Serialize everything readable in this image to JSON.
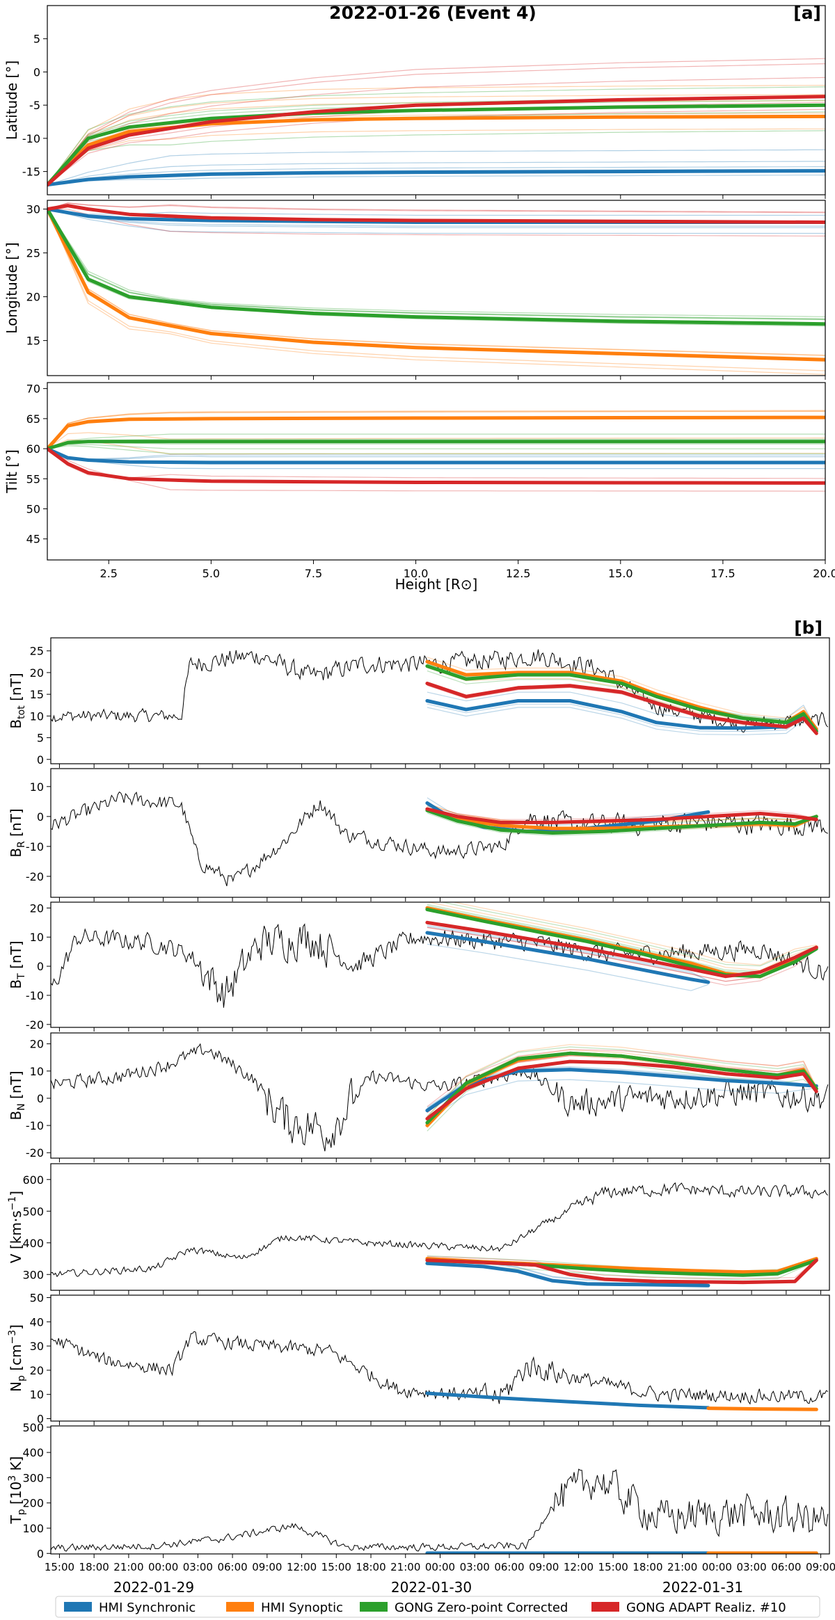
{
  "figure": {
    "title": "2022-01-26 (Event 4)",
    "panel_a_label": "[a]",
    "panel_b_label": "[b]"
  },
  "legend": [
    {
      "name": "HMI Synchronic",
      "color": "#1f77b4"
    },
    {
      "name": "HMI Synoptic",
      "color": "#ff7f0e"
    },
    {
      "name": "GONG Zero-point Corrected",
      "color": "#2ca02c"
    },
    {
      "name": "GONG ADAPT Realiz. #10",
      "color": "#d62728"
    }
  ],
  "colors": {
    "observed": "#000000",
    "grid": "#000000"
  },
  "chart_data": [
    {
      "type": "line",
      "panel": "a",
      "ylabel": "Latitude [°]",
      "xlabel": "",
      "xlim": [
        1,
        20
      ],
      "ylim": [
        -18.5,
        10
      ],
      "yticks": [
        5,
        0,
        -5,
        -10,
        -15
      ],
      "series": [
        {
          "name": "HMI Synchronic",
          "x": [
            1,
            2,
            3,
            5,
            7.5,
            10,
            15,
            20
          ],
          "values": [
            -17,
            -16.2,
            -15.8,
            -15.4,
            -15.2,
            -15.1,
            -15,
            -14.9
          ]
        },
        {
          "name": "HMI Synoptic",
          "x": [
            1,
            2,
            3,
            5,
            7.5,
            10,
            15,
            20
          ],
          "values": [
            -17,
            -11,
            -9,
            -7.8,
            -7.2,
            -7,
            -6.8,
            -6.7
          ]
        },
        {
          "name": "GONG Zero-point Corrected",
          "x": [
            1,
            2,
            3,
            5,
            7.5,
            10,
            15,
            20
          ],
          "values": [
            -17,
            -10,
            -8.3,
            -7,
            -6.2,
            -5.8,
            -5.3,
            -5
          ]
        },
        {
          "name": "GONG ADAPT Realiz. #10",
          "x": [
            1,
            2,
            3,
            5,
            7.5,
            10,
            15,
            20
          ],
          "values": [
            -17,
            -11.5,
            -9.5,
            -7.5,
            -6,
            -5,
            -4.2,
            -3.7
          ]
        }
      ]
    },
    {
      "type": "line",
      "panel": "a",
      "ylabel": "Longitude [°]",
      "xlabel": "",
      "xlim": [
        1,
        20
      ],
      "ylim": [
        11,
        31
      ],
      "yticks": [
        30,
        25,
        20,
        15
      ],
      "series": [
        {
          "name": "HMI Synchronic",
          "x": [
            1,
            2,
            3,
            5,
            7.5,
            10,
            15,
            20
          ],
          "values": [
            30,
            29.2,
            28.9,
            28.7,
            28.6,
            28.5,
            28.5,
            28.5
          ]
        },
        {
          "name": "HMI Synoptic",
          "x": [
            1,
            2,
            3,
            5,
            7.5,
            10,
            15,
            20
          ],
          "values": [
            30,
            20.5,
            17.6,
            15.8,
            14.8,
            14.2,
            13.5,
            12.8
          ]
        },
        {
          "name": "GONG Zero-point Corrected",
          "x": [
            1,
            2,
            3,
            5,
            7.5,
            10,
            15,
            20
          ],
          "values": [
            30,
            22,
            20,
            18.8,
            18.1,
            17.7,
            17.2,
            16.9
          ]
        },
        {
          "name": "GONG ADAPT Realiz. #10",
          "x": [
            1,
            1.5,
            2,
            3,
            5,
            7.5,
            10,
            15,
            20
          ],
          "values": [
            30,
            30.4,
            30,
            29.4,
            29,
            28.8,
            28.7,
            28.6,
            28.5
          ]
        }
      ]
    },
    {
      "type": "line",
      "panel": "a",
      "ylabel": "Tilt [°]",
      "xlabel": "Height [R⊙]",
      "xlim": [
        1,
        20
      ],
      "ylim": [
        41.5,
        71
      ],
      "yticks": [
        70,
        65,
        60,
        55,
        50,
        45
      ],
      "xticks": [
        "2.5",
        "5.0",
        "7.5",
        "10.0",
        "12.5",
        "15.0",
        "17.5",
        "20.0"
      ],
      "series": [
        {
          "name": "HMI Synchronic",
          "x": [
            1,
            1.5,
            2,
            3,
            5,
            10,
            20
          ],
          "values": [
            60,
            58.5,
            58.1,
            57.8,
            57.7,
            57.7,
            57.7
          ]
        },
        {
          "name": "HMI Synoptic",
          "x": [
            1,
            1.5,
            2,
            3,
            5,
            10,
            20
          ],
          "values": [
            60,
            63.8,
            64.5,
            64.9,
            65,
            65.1,
            65.2
          ]
        },
        {
          "name": "GONG Zero-point Corrected",
          "x": [
            1,
            1.5,
            2,
            3,
            5,
            10,
            20
          ],
          "values": [
            60,
            61,
            61.2,
            61.2,
            61.2,
            61.2,
            61.2
          ]
        },
        {
          "name": "GONG ADAPT Realiz. #10",
          "x": [
            1,
            1.5,
            2,
            3,
            5,
            10,
            20
          ],
          "values": [
            60,
            57.5,
            56,
            55,
            54.6,
            54.4,
            54.3
          ]
        }
      ]
    },
    {
      "type": "line",
      "panel": "b",
      "ylabel": "B_tot [nT]",
      "ylabel_main": "B",
      "ylabel_sub": "tot",
      "ylabel_rest": " [nT]",
      "ylim": [
        -1,
        28
      ],
      "yticks": [
        25,
        20,
        15,
        10,
        5,
        0
      ],
      "series": [
        {
          "name": "HMI Synchronic",
          "x": [
            43.5,
            48,
            54,
            60,
            66,
            70,
            75,
            80,
            85,
            87,
            88.5
          ],
          "values": [
            13.5,
            11.5,
            13.5,
            13.5,
            11,
            8.5,
            7.3,
            7.2,
            7.5,
            10.5,
            6.5
          ]
        },
        {
          "name": "HMI Synoptic",
          "x": [
            43.5,
            48,
            54,
            60,
            66,
            70,
            75,
            80,
            85,
            87,
            88.5
          ],
          "values": [
            22.5,
            19.5,
            20,
            20,
            18,
            15,
            12,
            9.5,
            8.5,
            11,
            7
          ]
        },
        {
          "name": "GONG Zero-point Corrected",
          "x": [
            43.5,
            48,
            54,
            60,
            66,
            70,
            75,
            80,
            85,
            87,
            88.5
          ],
          "values": [
            21.5,
            18.5,
            19.5,
            19.5,
            17.5,
            14.5,
            11.5,
            9.5,
            8.5,
            10.5,
            6.5
          ]
        },
        {
          "name": "GONG ADAPT Realiz. #10",
          "x": [
            43.5,
            48,
            54,
            60,
            66,
            70,
            75,
            80,
            85,
            87,
            88.5
          ],
          "values": [
            17.5,
            14.5,
            16.5,
            17,
            15.5,
            13,
            10,
            8.5,
            7.5,
            9.5,
            6
          ]
        }
      ]
    },
    {
      "type": "line",
      "panel": "b",
      "ylabel": "B_R [nT]",
      "ylabel_main": "B",
      "ylabel_sub": "R",
      "ylabel_rest": " [nT]",
      "ylim": [
        -27,
        16
      ],
      "yticks": [
        10,
        0,
        -10,
        -20
      ],
      "series": [
        {
          "name": "HMI Synchronic",
          "x": [
            43.5,
            46,
            50,
            55,
            60,
            65,
            70,
            76
          ],
          "values": [
            4.5,
            0,
            -3.5,
            -5,
            -4.5,
            -3,
            -1.5,
            1.5
          ]
        },
        {
          "name": "HMI Synoptic",
          "x": [
            43.5,
            47,
            52,
            58,
            64,
            70,
            76,
            82,
            86,
            88.5
          ],
          "values": [
            2.5,
            -1,
            -3,
            -4,
            -4,
            -3.5,
            -3,
            -2.5,
            -3,
            0
          ]
        },
        {
          "name": "GONG Zero-point Corrected",
          "x": [
            43.5,
            47,
            52,
            58,
            64,
            70,
            76,
            82,
            86,
            88.5
          ],
          "values": [
            2,
            -1.5,
            -4.5,
            -5.5,
            -5,
            -4,
            -3,
            -2,
            -2.5,
            0
          ]
        },
        {
          "name": "GONG ADAPT Realiz. #10",
          "x": [
            43.5,
            47,
            52,
            58,
            64,
            70,
            76,
            82,
            86,
            88.5
          ],
          "values": [
            2.5,
            0,
            -2,
            -2,
            -1.5,
            -1,
            0,
            1,
            0,
            -1
          ]
        }
      ]
    },
    {
      "type": "line",
      "panel": "b",
      "ylabel": "B_T [nT]",
      "ylabel_main": "B",
      "ylabel_sub": "T",
      "ylabel_rest": " [nT]",
      "ylim": [
        -21,
        22
      ],
      "yticks": [
        20,
        10,
        0,
        -10,
        -20
      ],
      "series": [
        {
          "name": "HMI Synchronic",
          "x": [
            43.5,
            50,
            56,
            62,
            68,
            74,
            76
          ],
          "values": [
            11.5,
            8.5,
            5.5,
            2.5,
            -1,
            -4.5,
            -5.5
          ]
        },
        {
          "name": "HMI Synoptic",
          "x": [
            43.5,
            50,
            56,
            62,
            68,
            74,
            78,
            82,
            86,
            88.5
          ],
          "values": [
            20,
            16,
            12.5,
            9,
            5,
            1,
            -2.5,
            -3.5,
            2,
            6.5
          ]
        },
        {
          "name": "GONG Zero-point Corrected",
          "x": [
            43.5,
            50,
            56,
            62,
            68,
            74,
            78,
            82,
            86,
            88.5
          ],
          "values": [
            19.5,
            15.5,
            12,
            8.5,
            4.5,
            0,
            -3,
            -3.5,
            1.5,
            6
          ]
        },
        {
          "name": "GONG ADAPT Realiz. #10",
          "x": [
            43.5,
            50,
            56,
            62,
            68,
            74,
            78,
            82,
            86,
            88.5
          ],
          "values": [
            15,
            12,
            9,
            6,
            2.5,
            -1,
            -3.5,
            -2,
            3,
            6.5
          ]
        }
      ]
    },
    {
      "type": "line",
      "panel": "b",
      "ylabel": "B_N [nT]",
      "ylabel_main": "B",
      "ylabel_sub": "N",
      "ylabel_rest": " [nT]",
      "ylim": [
        -22,
        24
      ],
      "yticks": [
        20,
        10,
        0,
        -10,
        -20
      ],
      "series": [
        {
          "name": "HMI Synchronic",
          "x": [
            43.5,
            48,
            54,
            60,
            66,
            72,
            78,
            84,
            88.5
          ],
          "values": [
            -4.5,
            5,
            10,
            10.5,
            9.5,
            8,
            6.5,
            5.5,
            4.5
          ]
        },
        {
          "name": "HMI Synoptic",
          "x": [
            43.5,
            48,
            54,
            60,
            66,
            72,
            78,
            84,
            87,
            88.5
          ],
          "values": [
            -10,
            5,
            14,
            16.5,
            15.5,
            13,
            10.5,
            8.5,
            10.5,
            3.5
          ]
        },
        {
          "name": "GONG Zero-point Corrected",
          "x": [
            43.5,
            48,
            54,
            60,
            66,
            72,
            78,
            84,
            87,
            88.5
          ],
          "values": [
            -9,
            5.5,
            14.5,
            16.5,
            15.5,
            13,
            10.5,
            8.5,
            10,
            3.5
          ]
        },
        {
          "name": "GONG ADAPT Realiz. #10",
          "x": [
            43.5,
            48,
            54,
            60,
            66,
            72,
            78,
            84,
            87,
            88.5
          ],
          "values": [
            -7.5,
            3.5,
            11,
            13.5,
            13,
            11.5,
            9,
            7.5,
            9,
            2.5
          ]
        }
      ]
    },
    {
      "type": "line",
      "panel": "b",
      "ylabel": "V [km·s⁻¹]",
      "ylabel_main": "V [km·s",
      "ylabel_sup": "−1",
      "ylabel_rest": "]",
      "ylim": [
        250,
        650
      ],
      "yticks": [
        600,
        500,
        400,
        300
      ],
      "series": [
        {
          "name": "HMI Synchronic",
          "x": [
            43.5,
            50,
            54,
            58,
            62,
            68,
            76
          ],
          "values": [
            335,
            325,
            310,
            280,
            270,
            268,
            265
          ]
        },
        {
          "name": "HMI Synoptic",
          "x": [
            43.5,
            50,
            56,
            62,
            68,
            74,
            80,
            84,
            88.5
          ],
          "values": [
            350,
            340,
            333,
            325,
            318,
            312,
            308,
            310,
            350
          ]
        },
        {
          "name": "GONG Zero-point Corrected",
          "x": [
            43.5,
            50,
            56,
            62,
            68,
            74,
            80,
            84,
            88.5
          ],
          "values": [
            345,
            338,
            330,
            318,
            308,
            302,
            298,
            302,
            345
          ]
        },
        {
          "name": "GONG ADAPT Realiz. #10",
          "x": [
            43.5,
            50,
            56,
            60,
            64,
            70,
            80,
            86,
            88.5
          ],
          "values": [
            345,
            338,
            330,
            300,
            285,
            278,
            275,
            278,
            345
          ]
        }
      ]
    },
    {
      "type": "line",
      "panel": "b",
      "ylabel": "N_p [cm⁻³]",
      "ylabel_main": "N",
      "ylabel_sub": "p",
      "ylabel_mid": " [cm",
      "ylabel_sup": "−3",
      "ylabel_rest": "]",
      "ylim": [
        -1,
        51
      ],
      "yticks": [
        50,
        40,
        30,
        20,
        10,
        0
      ],
      "series": [
        {
          "name": "HMI Synchronic",
          "x": [
            43.5,
            52,
            60,
            68,
            76
          ],
          "values": [
            10.5,
            8.5,
            7,
            5.5,
            4.5
          ]
        },
        {
          "name": "HMI Synoptic",
          "x": [
            76,
            82,
            88.5
          ],
          "values": [
            4.3,
            4,
            3.8
          ]
        }
      ]
    },
    {
      "type": "line",
      "panel": "b",
      "ylabel": "T_p [10³ K]",
      "ylabel_main": "T",
      "ylabel_sub": "p",
      "ylabel_mid": " [10",
      "ylabel_sup": "3",
      "ylabel_rest": " K]",
      "ylim": [
        -2,
        505
      ],
      "yticks": [
        500,
        400,
        300,
        200,
        100,
        0
      ],
      "xticks": [
        "15:00",
        "18:00",
        "21:00",
        "00:00",
        "03:00",
        "06:00",
        "09:00",
        "12:00",
        "15:00",
        "18:00",
        "21:00",
        "00:00",
        "03:00",
        "06:00",
        "09:00",
        "12:00",
        "15:00",
        "18:00",
        "21:00",
        "00:00",
        "03:00",
        "06:00",
        "09:00"
      ],
      "date_labels": [
        "2022-01-29",
        "2022-01-30",
        "2022-01-31"
      ],
      "series": [
        {
          "name": "HMI Synchronic",
          "x": [
            43.5,
            76
          ],
          "values": [
            1,
            1
          ]
        },
        {
          "name": "HMI Synoptic",
          "x": [
            76,
            88.5
          ],
          "values": [
            1,
            1
          ]
        }
      ]
    }
  ]
}
